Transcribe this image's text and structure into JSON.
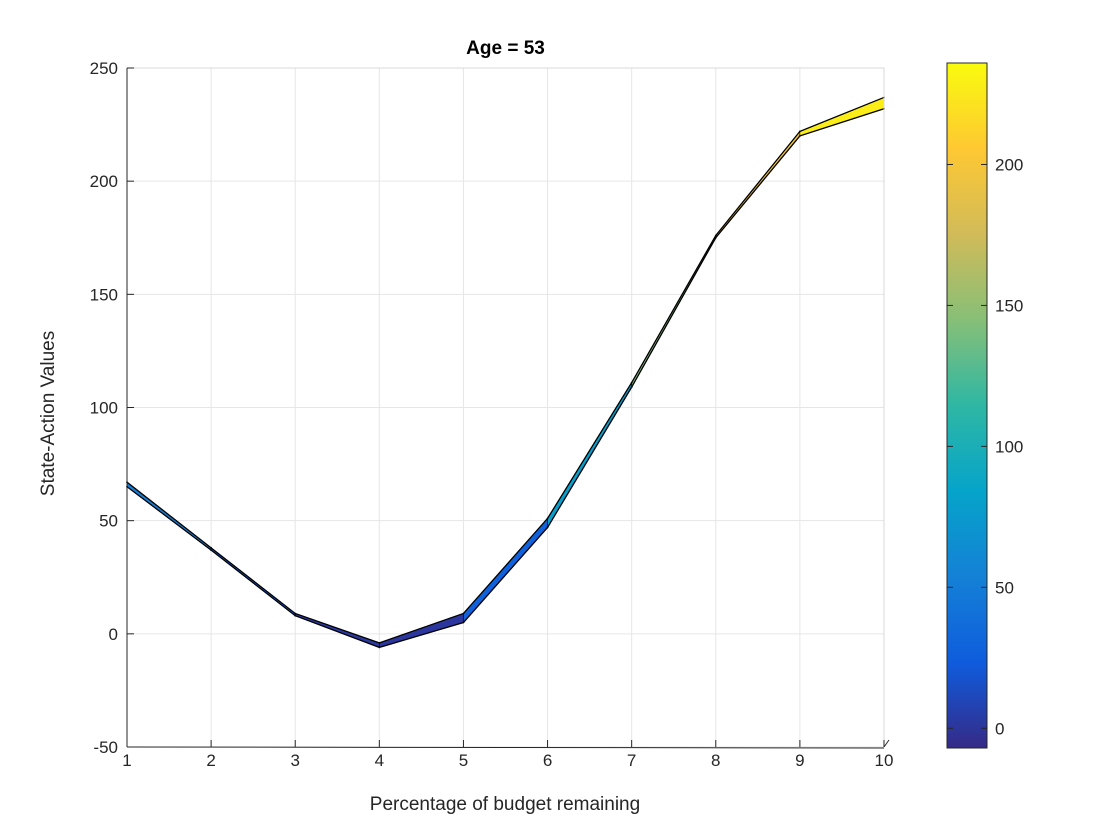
{
  "chart_data": {
    "type": "area",
    "title": "Age = 53",
    "xlabel": "Percentage of budget remaining",
    "ylabel": "State-Action Values",
    "xlim": [
      1,
      10
    ],
    "ylim": [
      -50,
      250
    ],
    "x_ticks": [
      "1",
      "2",
      "3",
      "4",
      "5",
      "6",
      "7",
      "8",
      "9",
      "10"
    ],
    "y_ticks": [
      "-50",
      "0",
      "50",
      "100",
      "150",
      "200",
      "250"
    ],
    "grid": true,
    "x": [
      1,
      2,
      3,
      4,
      5,
      6,
      7,
      8,
      9,
      10
    ],
    "series": [
      {
        "values": [
          65,
          37,
          8,
          -6,
          5,
          47,
          109,
          175,
          220,
          232
        ]
      },
      {
        "values": [
          67,
          38,
          9,
          -4,
          9,
          51,
          111,
          176,
          222,
          237
        ]
      }
    ],
    "colorbar": {
      "colormap": "parula",
      "range": [
        -7,
        236
      ],
      "ticks": [
        "0",
        "50",
        "100",
        "150",
        "200"
      ],
      "tick_values": [
        0,
        50,
        100,
        150,
        200
      ]
    },
    "colors": {
      "parula": [
        "#352a87",
        "#0f5cdd",
        "#1481d6",
        "#06a4ca",
        "#2eb7a4",
        "#87bf77",
        "#d1bb59",
        "#fec832",
        "#f9fb0e"
      ],
      "outline": "#000000",
      "grid": "#e6e6e6",
      "axis": "#262626"
    }
  }
}
